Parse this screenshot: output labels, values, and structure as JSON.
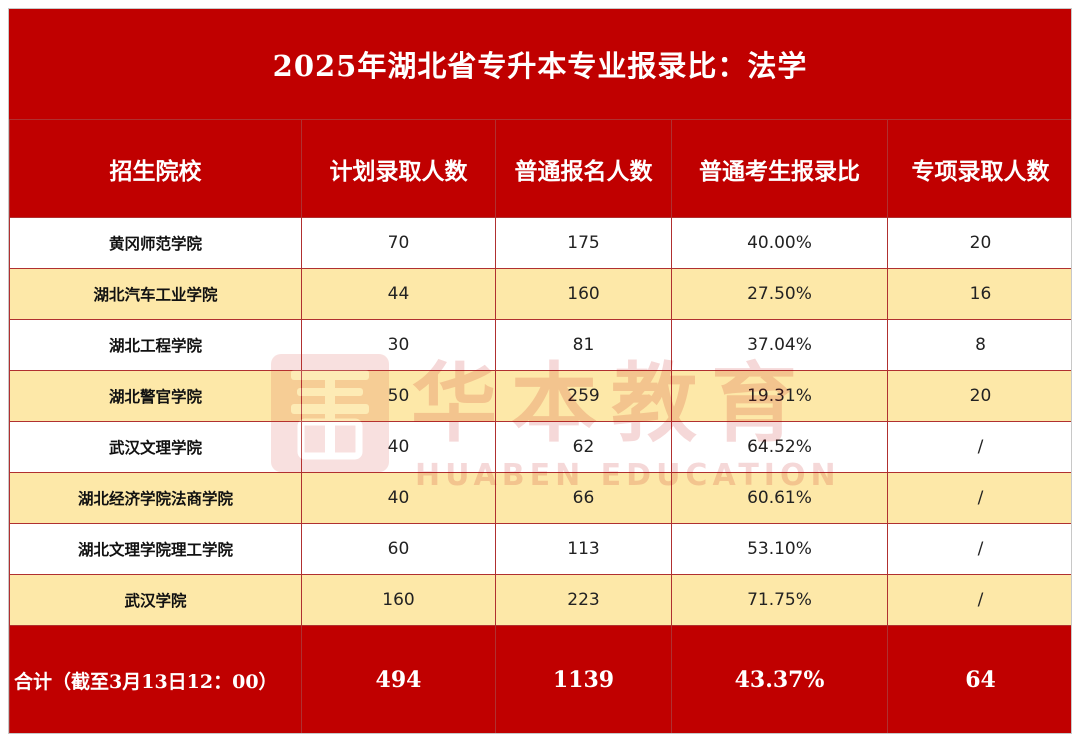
{
  "title": "2025年湖北省专升本专业报录比：法学",
  "headers": [
    "招生院校",
    "计划录取人数",
    "普通报名人数",
    "普通考生报录比",
    "专项录取人数"
  ],
  "rows": [
    {
      "school": "黄冈师范学院",
      "plan": "70",
      "applicants": "175",
      "ratio": "40.00%",
      "special": "20"
    },
    {
      "school": "湖北汽车工业学院",
      "plan": "44",
      "applicants": "160",
      "ratio": "27.50%",
      "special": "16"
    },
    {
      "school": "湖北工程学院",
      "plan": "30",
      "applicants": "81",
      "ratio": "37.04%",
      "special": "8"
    },
    {
      "school": "湖北警官学院",
      "plan": "50",
      "applicants": "259",
      "ratio": "19.31%",
      "special": "20"
    },
    {
      "school": "武汉文理学院",
      "plan": "40",
      "applicants": "62",
      "ratio": "64.52%",
      "special": "/"
    },
    {
      "school": "湖北经济学院法商学院",
      "plan": "40",
      "applicants": "66",
      "ratio": "60.61%",
      "special": "/"
    },
    {
      "school": "湖北文理学院理工学院",
      "plan": "60",
      "applicants": "113",
      "ratio": "53.10%",
      "special": "/"
    },
    {
      "school": "武汉学院",
      "plan": "160",
      "applicants": "223",
      "ratio": "71.75%",
      "special": "/"
    }
  ],
  "total": {
    "label": "合计（截至3月13日12：00）",
    "plan": "494",
    "applicants": "1139",
    "ratio": "43.37%",
    "special": "64"
  },
  "watermark": {
    "cn": "华本教育",
    "en": "HUABEN EDUCATION",
    "icon": "huaben-logo-icon"
  },
  "colors": {
    "header_red": "#c00000",
    "row_highlight": "#fde8a8",
    "row_plain": "#ffffff"
  }
}
